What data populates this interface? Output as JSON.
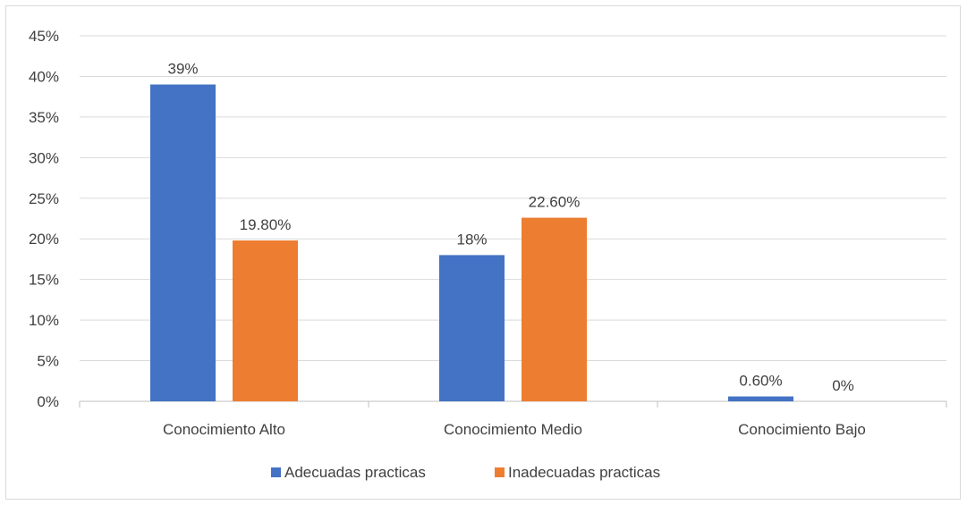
{
  "chart_data": {
    "type": "bar",
    "categories": [
      "Conocimiento Alto",
      "Conocimiento Medio",
      "Conocimiento Bajo"
    ],
    "series": [
      {
        "name": "Adecuadas practicas",
        "values": [
          39,
          18,
          0.6
        ],
        "labels": [
          "39%",
          "18%",
          "0.60%"
        ],
        "color": "#4472C4"
      },
      {
        "name": "Inadecuadas practicas",
        "values": [
          19.8,
          22.6,
          0
        ],
        "labels": [
          "19.80%",
          "22.60%",
          "0%"
        ],
        "color": "#ED7D31"
      }
    ],
    "y_ticks": [
      "0%",
      "5%",
      "10%",
      "15%",
      "20%",
      "25%",
      "30%",
      "35%",
      "40%",
      "45%"
    ],
    "ylim": [
      0,
      45
    ],
    "grid": true,
    "legend_position": "bottom",
    "title": "",
    "xlabel": "",
    "ylabel": ""
  }
}
